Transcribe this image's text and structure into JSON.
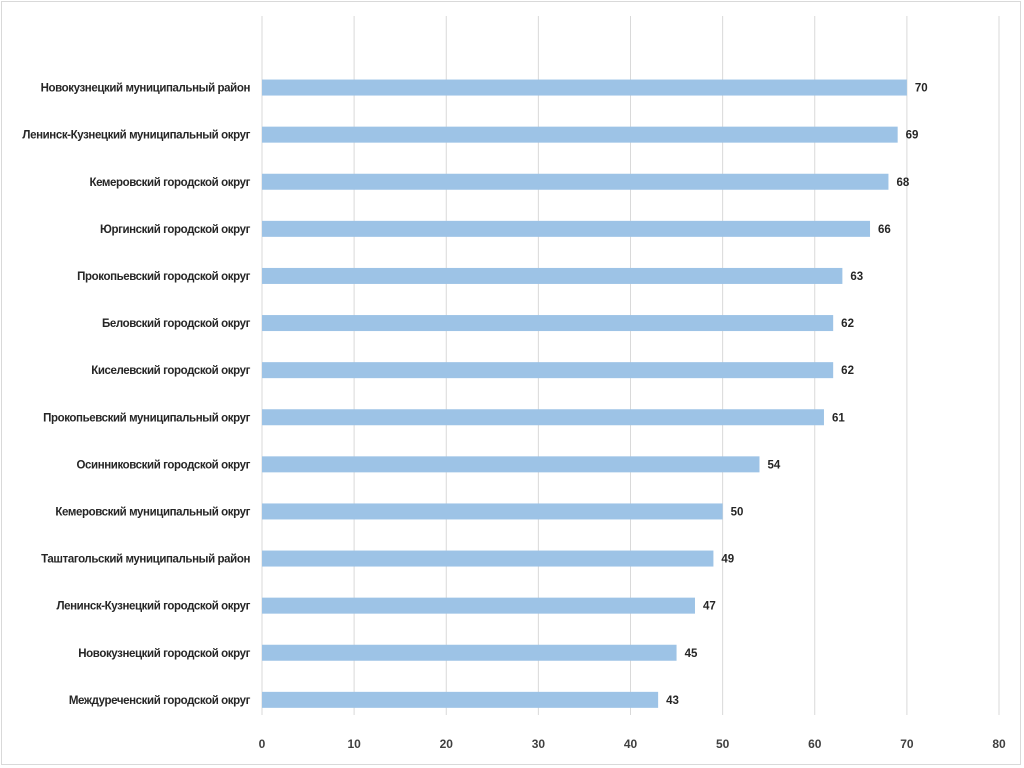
{
  "chart_data": {
    "type": "bar",
    "orientation": "horizontal",
    "categories": [
      "Новокузнецкий муниципальный район",
      "Ленинск-Кузнецкий муниципальный округ",
      "Кемеровский городской округ",
      "Юргинский городской округ",
      "Прокопьевский городской округ",
      "Беловский городской округ",
      "Киселевский городской округ",
      "Прокопьевский муниципальный округ",
      "Осинниковский городской округ",
      "Кемеровский муниципальный округ",
      "Таштагольский муниципальный район",
      "Ленинск-Кузнецкий городской округ",
      "Новокузнецкий городской округ",
      "Междуреченский городской округ"
    ],
    "values": [
      70,
      69,
      68,
      66,
      63,
      62,
      62,
      61,
      54,
      50,
      49,
      47,
      45,
      43
    ],
    "xlim": [
      0,
      80
    ],
    "xticks": [
      "0",
      "10",
      "20",
      "30",
      "40",
      "50",
      "60",
      "70",
      "80"
    ],
    "data_labels": true,
    "grid": "vertical",
    "title": "",
    "xlabel": "",
    "ylabel": "",
    "colors": {
      "bar": "#9dc3e6",
      "grid": "#d9d9d9",
      "text": "#262626"
    }
  }
}
